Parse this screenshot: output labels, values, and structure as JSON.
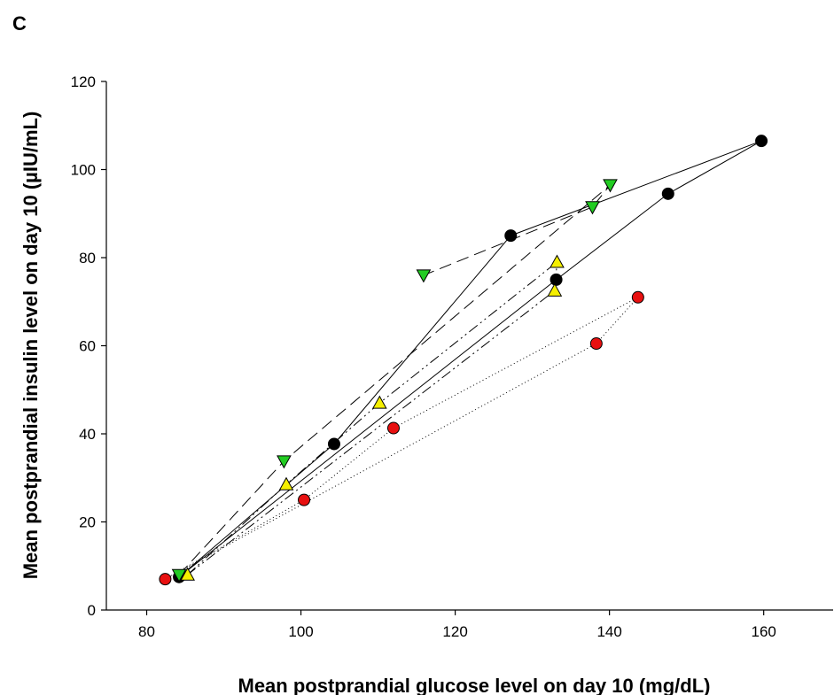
{
  "panel_label": "C",
  "chart_data": {
    "type": "scatter",
    "title": "",
    "xlabel": "Mean postprandial glucose level on day 10 (mg/dL)",
    "ylabel": "Mean postprandial insulin level on day 10 (µIU/mL)",
    "xlim": [
      75,
      169
    ],
    "ylim": [
      0,
      120
    ],
    "xticks": [
      80,
      100,
      120,
      140,
      160
    ],
    "yticks": [
      0,
      20,
      40,
      60,
      80,
      100,
      120
    ],
    "grid": false,
    "legend": "none",
    "series": [
      {
        "marker": "circle",
        "color": "#000000",
        "line_style": "solid",
        "points": [
          [
            84.2,
            7.5
          ],
          [
            104.3,
            37.7
          ],
          [
            127.2,
            85.0
          ],
          [
            159.7,
            106.5
          ],
          [
            147.6,
            94.5
          ],
          [
            133.1,
            75.0
          ],
          [
            84.2,
            7.5
          ]
        ]
      },
      {
        "marker": "triangle-down",
        "color": "#22cc22",
        "line_style": "longdash",
        "points": [
          [
            84.2,
            8.0
          ],
          [
            97.8,
            33.8
          ],
          [
            140.1,
            96.5
          ],
          [
            137.8,
            91.5
          ],
          [
            115.9,
            76.0
          ]
        ]
      },
      {
        "marker": "triangle-up",
        "color": "#f5ef00",
        "line_style": "dashdot",
        "points": [
          [
            85.3,
            8.0
          ],
          [
            98.1,
            28.5
          ],
          [
            110.2,
            47.0
          ],
          [
            133.2,
            79.0
          ],
          [
            132.9,
            72.5
          ],
          [
            85.3,
            8.0
          ]
        ]
      },
      {
        "marker": "circle",
        "color": "#e81010",
        "line_style": "dotted",
        "points": [
          [
            82.4,
            7.0
          ],
          [
            100.4,
            25.0
          ],
          [
            112.0,
            41.3
          ],
          [
            143.7,
            71.0
          ],
          [
            138.3,
            60.5
          ],
          [
            82.4,
            7.0
          ]
        ]
      }
    ]
  }
}
